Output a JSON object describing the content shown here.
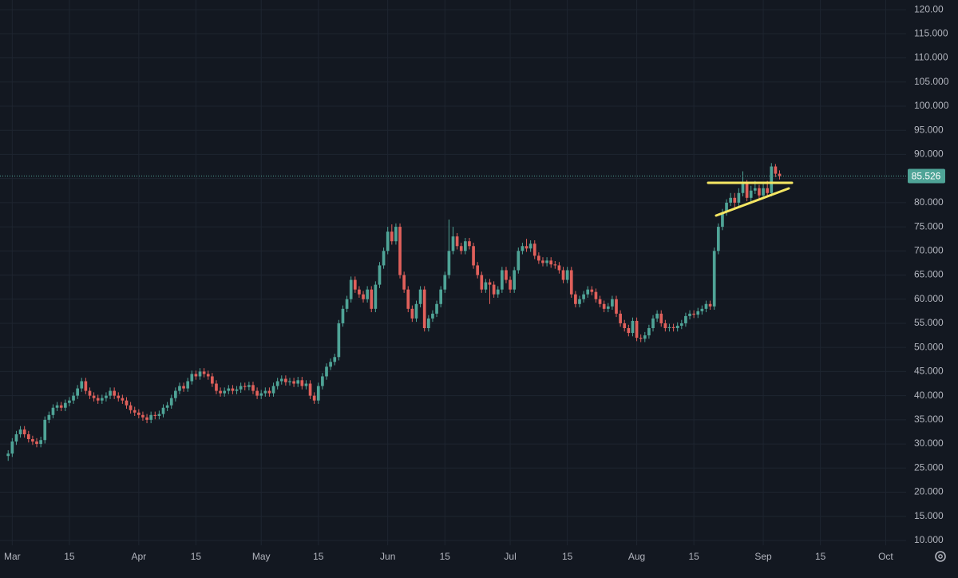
{
  "chart_data": {
    "type": "candlestick",
    "up_color": "#4fa497",
    "down_color": "#e0605b",
    "grid": true,
    "xlim": [
      "02-26",
      "10-06"
    ],
    "ylim": [
      9,
      122
    ],
    "xticks": [
      {
        "value": "03-01",
        "label": "Mar"
      },
      {
        "value": "03-15",
        "label": "15"
      },
      {
        "value": "04-01",
        "label": "Apr"
      },
      {
        "value": "04-15",
        "label": "15"
      },
      {
        "value": "05-01",
        "label": "May"
      },
      {
        "value": "05-15",
        "label": "15"
      },
      {
        "value": "06-01",
        "label": "Jun"
      },
      {
        "value": "06-15",
        "label": "15"
      },
      {
        "value": "07-01",
        "label": "Jul"
      },
      {
        "value": "07-15",
        "label": "15"
      },
      {
        "value": "08-01",
        "label": "Aug"
      },
      {
        "value": "08-15",
        "label": "15"
      },
      {
        "value": "09-01",
        "label": "Sep"
      },
      {
        "value": "09-15",
        "label": "15"
      },
      {
        "value": "10-01",
        "label": "Oct"
      }
    ],
    "yticks": [
      {
        "value": 120,
        "label": "120.00"
      },
      {
        "value": 115,
        "label": "115.000"
      },
      {
        "value": 110,
        "label": "110.000"
      },
      {
        "value": 105,
        "label": "105.000"
      },
      {
        "value": 100,
        "label": "100.000"
      },
      {
        "value": 95,
        "label": "95.000"
      },
      {
        "value": 90,
        "label": "90.000"
      },
      {
        "value": 85,
        "label": "85.000"
      },
      {
        "value": 80,
        "label": "80.000"
      },
      {
        "value": 75,
        "label": "75.000"
      },
      {
        "value": 70,
        "label": "70.000"
      },
      {
        "value": 65,
        "label": "65.000"
      },
      {
        "value": 60,
        "label": "60.000"
      },
      {
        "value": 55,
        "label": "55.000"
      },
      {
        "value": 50,
        "label": "50.000"
      },
      {
        "value": 45,
        "label": "45.000"
      },
      {
        "value": 40,
        "label": "40.000"
      },
      {
        "value": 35,
        "label": "35.000"
      },
      {
        "value": 30,
        "label": "30.000"
      },
      {
        "value": 25,
        "label": "25.000"
      },
      {
        "value": 20,
        "label": "20.000"
      },
      {
        "value": 15,
        "label": "15.000"
      },
      {
        "value": 10,
        "label": "10.000"
      }
    ],
    "last_price": 85.526,
    "x": [
      "02-28",
      "03-01",
      "03-02",
      "03-03",
      "03-04",
      "03-05",
      "03-06",
      "03-07",
      "03-08",
      "03-09",
      "03-10",
      "03-11",
      "03-12",
      "03-13",
      "03-14",
      "03-15",
      "03-16",
      "03-17",
      "03-18",
      "03-19",
      "03-20",
      "03-21",
      "03-22",
      "03-23",
      "03-24",
      "03-25",
      "03-26",
      "03-27",
      "03-28",
      "03-29",
      "03-30",
      "03-31",
      "04-01",
      "04-02",
      "04-03",
      "04-04",
      "04-05",
      "04-06",
      "04-07",
      "04-08",
      "04-09",
      "04-10",
      "04-11",
      "04-12",
      "04-13",
      "04-14",
      "04-15",
      "04-16",
      "04-17",
      "04-18",
      "04-19",
      "04-20",
      "04-21",
      "04-22",
      "04-23",
      "04-24",
      "04-25",
      "04-26",
      "04-27",
      "04-28",
      "04-29",
      "04-30",
      "05-01",
      "05-02",
      "05-03",
      "05-04",
      "05-05",
      "05-06",
      "05-07",
      "05-08",
      "05-09",
      "05-10",
      "05-11",
      "05-12",
      "05-13",
      "05-14",
      "05-15",
      "05-16",
      "05-17",
      "05-18",
      "05-19",
      "05-20",
      "05-21",
      "05-22",
      "05-23",
      "05-24",
      "05-25",
      "05-26",
      "05-27",
      "05-28",
      "05-29",
      "05-30",
      "05-31",
      "06-01",
      "06-02",
      "06-03",
      "06-04",
      "06-05",
      "06-06",
      "06-07",
      "06-08",
      "06-09",
      "06-10",
      "06-11",
      "06-12",
      "06-13",
      "06-14",
      "06-15",
      "06-16",
      "06-17",
      "06-18",
      "06-19",
      "06-20",
      "06-21",
      "06-22",
      "06-23",
      "06-24",
      "06-25",
      "06-26",
      "06-27",
      "06-28",
      "06-29",
      "06-30",
      "07-01",
      "07-02",
      "07-03",
      "07-04",
      "07-05",
      "07-06",
      "07-07",
      "07-08",
      "07-09",
      "07-10",
      "07-11",
      "07-12",
      "07-13",
      "07-14",
      "07-15",
      "07-16",
      "07-17",
      "07-18",
      "07-19",
      "07-20",
      "07-21",
      "07-22",
      "07-23",
      "07-24",
      "07-25",
      "07-26",
      "07-27",
      "07-28",
      "07-29",
      "07-30",
      "07-31",
      "08-01",
      "08-02",
      "08-03",
      "08-04",
      "08-05",
      "08-06",
      "08-07",
      "08-08",
      "08-09",
      "08-10",
      "08-11",
      "08-12",
      "08-13",
      "08-14",
      "08-15",
      "08-16",
      "08-17",
      "08-18",
      "08-19",
      "08-20",
      "08-21",
      "08-22",
      "08-23",
      "08-24",
      "08-25",
      "08-26",
      "08-27",
      "08-28",
      "08-29",
      "08-30",
      "08-31",
      "09-01",
      "09-02",
      "09-03",
      "09-04",
      "09-05"
    ],
    "open": [
      27.5,
      28,
      30.5,
      32,
      33,
      32,
      31,
      30.5,
      30,
      30.8,
      35,
      36,
      37.5,
      38,
      37.5,
      38.5,
      39,
      40,
      41.5,
      43,
      41,
      40,
      39.5,
      39,
      39.5,
      40,
      41,
      40,
      39.5,
      39,
      38,
      37,
      36.5,
      36,
      35.5,
      35,
      36,
      35.8,
      36.2,
      37.5,
      38,
      39.5,
      41,
      42,
      41.5,
      43,
      44.5,
      44,
      45,
      44.5,
      44,
      42.5,
      41,
      40.5,
      41,
      41.5,
      41,
      41.3,
      42,
      41.8,
      42.2,
      41,
      40,
      40.5,
      41,
      40.5,
      42,
      43,
      43.5,
      42.8,
      43,
      42.5,
      43.2,
      42,
      42.5,
      40,
      39,
      42,
      44,
      46,
      47,
      48,
      55,
      58,
      60,
      64,
      62,
      61,
      60,
      62,
      58,
      63,
      67,
      70,
      74,
      72,
      75,
      65,
      62,
      58,
      56,
      59,
      62,
      54,
      56,
      57,
      59,
      62,
      65,
      70,
      73,
      71,
      70,
      72,
      71,
      67,
      65,
      62,
      63.5,
      63,
      61,
      62,
      66,
      64,
      62,
      66,
      70,
      71,
      70.5,
      71.5,
      69,
      68,
      67.5,
      68,
      67.2,
      67,
      66,
      64,
      66,
      61,
      59,
      60,
      61,
      62,
      61.5,
      60,
      59,
      58,
      58.5,
      60,
      57,
      55,
      54,
      53,
      55.5,
      52,
      51.8,
      52.5,
      54,
      56,
      57,
      55,
      54,
      54.2,
      54,
      54.5,
      55,
      56.5,
      57,
      56.8,
      57.5,
      58,
      59,
      58.5,
      70,
      75,
      78,
      80,
      81,
      80,
      82,
      84,
      81,
      82.5,
      83,
      81.5,
      83,
      82,
      87.5,
      86
    ],
    "high": [
      28.7,
      31.2,
      32.7,
      33.7,
      33.7,
      32.7,
      31.7,
      31.2,
      31.5,
      35.7,
      36.7,
      38.2,
      38.7,
      38.7,
      39.2,
      39.7,
      40.7,
      42.2,
      43.7,
      43.7,
      41.7,
      40.7,
      40.2,
      40.2,
      40.7,
      41.7,
      41.7,
      40.7,
      40.2,
      39.7,
      38.7,
      37.7,
      37.2,
      36.7,
      36.2,
      36.7,
      36.7,
      36.9,
      38.2,
      38.7,
      40.2,
      41.7,
      42.7,
      42.7,
      43.7,
      45.2,
      45.2,
      45.7,
      45.7,
      45.2,
      44.7,
      43.2,
      41.7,
      41.7,
      42.2,
      42.2,
      42,
      42.7,
      42.7,
      42.9,
      42.9,
      41.7,
      41.2,
      41.7,
      41.7,
      42.7,
      43.7,
      44.2,
      44.2,
      43.7,
      43.7,
      43.9,
      43.9,
      43.2,
      43.2,
      40.7,
      42.7,
      44.7,
      46.7,
      47.7,
      48.7,
      55.7,
      58.7,
      60.7,
      64.7,
      64.7,
      62.7,
      61.7,
      62.7,
      62.7,
      63.7,
      67.7,
      70.7,
      75,
      75.5,
      75.7,
      75.7,
      65.7,
      62.7,
      58.7,
      59.7,
      62.7,
      62.7,
      56.7,
      57.7,
      59.7,
      62.7,
      65.7,
      76.5,
      75,
      73.7,
      71.7,
      72.7,
      72.7,
      71.7,
      67.7,
      65.7,
      64.2,
      64.2,
      63.7,
      62.7,
      66.7,
      66.7,
      64.7,
      66.7,
      70.7,
      71.7,
      72.5,
      72.2,
      72.2,
      69.7,
      68.7,
      68.7,
      68.7,
      67.9,
      67.7,
      66.7,
      66.7,
      66.7,
      61.7,
      60.7,
      61.7,
      62.7,
      62.7,
      62.2,
      60.7,
      59.7,
      59.2,
      60.7,
      60.7,
      57.7,
      55.7,
      54.7,
      56.2,
      56.2,
      52.7,
      53.2,
      54.7,
      56.7,
      57.7,
      57.7,
      55.7,
      54.9,
      54.9,
      55.2,
      55.7,
      57.2,
      57.7,
      57.7,
      58.2,
      58.7,
      59.7,
      59.7,
      70.7,
      75.7,
      78.7,
      80.7,
      82,
      82,
      83,
      86.5,
      84.7,
      83.5,
      84.5,
      83.7,
      84,
      84.5,
      88.2,
      88,
      86.7
    ],
    "low": [
      26.5,
      27.3,
      29.8,
      31.3,
      31.3,
      30.3,
      29.8,
      29.3,
      29.3,
      30.1,
      34.3,
      35.3,
      36.8,
      36.8,
      36.8,
      37.8,
      38.3,
      39.3,
      40.8,
      40.3,
      39.3,
      38.8,
      38.3,
      38.3,
      38.8,
      39.3,
      39.3,
      38.8,
      38.3,
      37.3,
      36.3,
      35.8,
      35.3,
      34.8,
      34.3,
      34.3,
      35.1,
      35.1,
      35.5,
      36.8,
      37.3,
      38.8,
      40.3,
      40.8,
      40.8,
      42.3,
      43.3,
      43.3,
      43.8,
      43.3,
      41.8,
      40.3,
      39.8,
      39.8,
      40.3,
      40.3,
      40.3,
      40.6,
      41.1,
      41.1,
      40.3,
      39.3,
      39.3,
      39.8,
      39.8,
      39.8,
      41.3,
      42.3,
      42.1,
      42.1,
      41.8,
      41.8,
      41.3,
      41.3,
      39.3,
      38.3,
      38.3,
      41.3,
      43.3,
      45.3,
      46.3,
      47.3,
      54.3,
      57.3,
      59.3,
      61.3,
      60.3,
      59.3,
      59.3,
      57.3,
      57.3,
      62.3,
      66.3,
      69.3,
      71.3,
      71.3,
      64.3,
      61.3,
      57.3,
      55.3,
      55.3,
      58.3,
      53.3,
      53.3,
      55.3,
      56.3,
      58.3,
      61.3,
      64.3,
      69.3,
      70.3,
      69.3,
      69.3,
      70.3,
      66.3,
      64.3,
      61.3,
      61.3,
      59,
      60.3,
      60.3,
      61.3,
      63.3,
      61.3,
      61.3,
      65.3,
      69.3,
      69.8,
      69.8,
      68.3,
      67.3,
      66.8,
      66.8,
      66.5,
      66.3,
      65.3,
      63.3,
      63.3,
      60.3,
      58.3,
      58.3,
      59.3,
      60.3,
      60.8,
      59.3,
      58.3,
      57.3,
      57.3,
      57.8,
      56.3,
      54.3,
      53.3,
      52.3,
      52.3,
      51.3,
      51.1,
      51.1,
      51.8,
      53.3,
      55.3,
      54.3,
      53.3,
      53.3,
      53.3,
      53.3,
      53.8,
      54.3,
      55.8,
      56.1,
      56.1,
      56.8,
      57.3,
      57.8,
      57.8,
      69.3,
      74.3,
      77.3,
      79.3,
      78.5,
      79.3,
      81.3,
      80.3,
      80.3,
      81.8,
      80.8,
      80.8,
      81.3,
      81.3,
      85.3,
      84.8
    ],
    "close": [
      28,
      30.5,
      32,
      33,
      32,
      31,
      30.5,
      30,
      30.8,
      35,
      36,
      37.5,
      38,
      37.5,
      38.5,
      39,
      40,
      41.5,
      43,
      41,
      40,
      39.5,
      39,
      39.5,
      40,
      41,
      40,
      39.5,
      39,
      38,
      37,
      36.5,
      36,
      35.5,
      35,
      36,
      35.8,
      36.2,
      37.5,
      38,
      39.5,
      41,
      42,
      41.5,
      43,
      44.5,
      44,
      45,
      44.5,
      44,
      42.5,
      41,
      40.5,
      41,
      41.5,
      41,
      41.3,
      42,
      41.8,
      42.2,
      41,
      40,
      40.5,
      41,
      40.5,
      42,
      43,
      43.5,
      42.8,
      43,
      42.5,
      43.2,
      42,
      42.5,
      40,
      39,
      42,
      44,
      46,
      47,
      48,
      55,
      58,
      60,
      64,
      62,
      61,
      60,
      62,
      58,
      63,
      67,
      70,
      74,
      72,
      75,
      65,
      62,
      58,
      56,
      59,
      62,
      54,
      56,
      57,
      59,
      62,
      65,
      70,
      73,
      71,
      70,
      72,
      71,
      67,
      65,
      62,
      63.5,
      63,
      61,
      62,
      66,
      64,
      62,
      66,
      70,
      71,
      70.5,
      71.5,
      69,
      68,
      67.5,
      68,
      67.2,
      67,
      66,
      64,
      66,
      61,
      59,
      60,
      61,
      62,
      61.5,
      60,
      59,
      58,
      58.5,
      60,
      57,
      55,
      54,
      53,
      55.5,
      52,
      51.8,
      52.5,
      54,
      56,
      57,
      55,
      54,
      54.2,
      54,
      54.5,
      55,
      56.5,
      57,
      56.8,
      57.5,
      58,
      59,
      58.5,
      70,
      75,
      78,
      80,
      81,
      80,
      82,
      84,
      81,
      82.5,
      83,
      81.5,
      83,
      82,
      87.5,
      86,
      85.5
    ]
  }
}
